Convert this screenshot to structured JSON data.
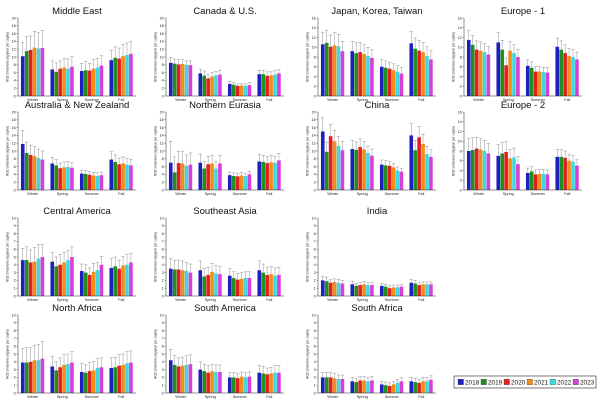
{
  "years": [
    "2018",
    "2019",
    "2020",
    "2021",
    "2022",
    "2023"
  ],
  "colors": [
    "#1f1fbf",
    "#1f8f1f",
    "#e02020",
    "#f28c1a",
    "#3fd8e0",
    "#d83fd8"
  ],
  "chart_data": [
    {
      "type": "bar",
      "title": "Middle East",
      "ylabel": "NO2 emissions (kg/year per capita)",
      "ylim": [
        0,
        20
      ],
      "yticks": [
        0,
        2,
        4,
        6,
        8,
        10,
        12,
        14,
        16,
        18,
        20
      ],
      "categories": [
        "Winter",
        "Spring",
        "Summer",
        "Fall"
      ],
      "values": [
        [
          10.2,
          11.5,
          11.8,
          12.4,
          12.2,
          12.3
        ],
        [
          6.8,
          6.2,
          7.0,
          7.3,
          7.0,
          7.5
        ],
        [
          6.4,
          6.6,
          6.5,
          7.0,
          7.3,
          7.8
        ],
        [
          9.2,
          9.8,
          9.6,
          10.2,
          10.5,
          10.8
        ]
      ],
      "errors": [
        [
          3.5,
          3.8,
          3.6,
          4.2,
          4.0,
          4.5
        ],
        [
          2.2,
          2.3,
          2.0,
          2.4,
          2.5,
          2.6
        ],
        [
          2.0,
          2.2,
          1.9,
          2.4,
          2.3,
          2.5
        ],
        [
          2.5,
          2.8,
          2.7,
          3.0,
          3.1,
          3.2
        ]
      ]
    },
    {
      "type": "bar",
      "title": "Canada & U.S.",
      "ylabel": "NO2 emissions (kg/year per capita)",
      "ylim": [
        0,
        20
      ],
      "yticks": [
        0,
        2,
        4,
        6,
        8,
        10,
        12,
        14,
        16,
        18,
        20
      ],
      "categories": [
        "Winter",
        "Spring",
        "Summer",
        "Fall"
      ],
      "values": [
        [
          8.5,
          8.3,
          8.1,
          8.2,
          8.0,
          7.9
        ],
        [
          5.8,
          5.2,
          4.5,
          5.0,
          5.3,
          5.5
        ],
        [
          3.1,
          2.9,
          2.6,
          2.7,
          2.6,
          2.8
        ],
        [
          5.6,
          5.6,
          5.2,
          5.3,
          5.5,
          5.8
        ]
      ],
      "errors": [
        [
          1.3,
          1.2,
          1.2,
          1.1,
          1.0,
          1.1
        ],
        [
          1.1,
          1.2,
          1.0,
          1.1,
          1.0,
          1.1
        ],
        [
          0.6,
          0.6,
          0.5,
          0.5,
          0.5,
          0.6
        ],
        [
          1.0,
          1.0,
          1.0,
          0.9,
          1.0,
          1.0
        ]
      ]
    },
    {
      "type": "bar",
      "title": "Japan, Korea, Taiwan",
      "ylabel": "NO2 emissions (kg/year per capita)",
      "ylim": [
        0,
        16
      ],
      "yticks": [
        0,
        2,
        4,
        6,
        8,
        10,
        12,
        14,
        16
      ],
      "categories": [
        "Winter",
        "Spring",
        "Summer",
        "Fall"
      ],
      "values": [
        [
          10.6,
          10.9,
          10.1,
          10.4,
          10.2,
          9.2
        ],
        [
          9.2,
          8.8,
          9.0,
          8.6,
          8.2,
          7.8
        ],
        [
          6.0,
          5.8,
          5.6,
          5.3,
          5.0,
          4.6
        ],
        [
          10.8,
          9.7,
          9.3,
          9.0,
          8.2,
          7.5
        ]
      ],
      "errors": [
        [
          2.5,
          2.6,
          2.4,
          2.6,
          2.4,
          2.0
        ],
        [
          2.0,
          2.1,
          2.0,
          1.9,
          1.8,
          1.7
        ],
        [
          1.5,
          1.4,
          1.3,
          1.3,
          1.2,
          1.2
        ],
        [
          2.4,
          2.2,
          2.1,
          2.0,
          1.9,
          1.8
        ]
      ]
    },
    {
      "type": "bar",
      "title": "Europe - 1",
      "ylabel": "NO2 emissions (kg/year per capita)",
      "ylim": [
        0,
        16
      ],
      "yticks": [
        0,
        2,
        4,
        6,
        8,
        10,
        12,
        14,
        16
      ],
      "categories": [
        "Winter",
        "Spring",
        "Summer",
        "Fall"
      ],
      "values": [
        [
          11.5,
          10.5,
          9.5,
          9.3,
          9.0,
          8.5
        ],
        [
          11.0,
          9.5,
          6.3,
          9.3,
          8.8,
          8.0
        ],
        [
          6.2,
          5.8,
          5.0,
          5.0,
          4.9,
          4.8
        ],
        [
          10.1,
          9.5,
          8.8,
          8.2,
          8.0,
          7.5
        ]
      ],
      "errors": [
        [
          2.0,
          1.9,
          1.8,
          1.8,
          1.7,
          1.6
        ],
        [
          2.0,
          1.9,
          1.5,
          1.8,
          1.7,
          1.6
        ],
        [
          1.2,
          1.2,
          1.0,
          1.0,
          1.0,
          1.0
        ],
        [
          1.8,
          1.8,
          1.7,
          1.6,
          1.5,
          1.5
        ]
      ]
    },
    {
      "type": "bar",
      "title": "Australia & New Zealand",
      "ylabel": "NO2 emissions (kg/year per capita)",
      "ylim": [
        0,
        20
      ],
      "yticks": [
        0,
        2,
        4,
        6,
        8,
        10,
        12,
        14,
        16,
        18,
        20
      ],
      "categories": [
        "Winter",
        "Spring",
        "Summer",
        "Fall"
      ],
      "values": [
        [
          11.8,
          9.5,
          9.0,
          8.7,
          8.2,
          7.8
        ],
        [
          6.8,
          6.3,
          5.6,
          5.8,
          5.9,
          5.7
        ],
        [
          4.2,
          4.1,
          3.9,
          3.7,
          3.6,
          3.8
        ],
        [
          7.8,
          7.2,
          6.6,
          6.8,
          6.5,
          6.3
        ]
      ],
      "errors": [
        [
          3.5,
          2.8,
          2.5,
          2.4,
          2.3,
          2.2
        ],
        [
          1.6,
          1.5,
          1.3,
          1.4,
          1.4,
          1.3
        ],
        [
          0.9,
          0.9,
          0.8,
          0.8,
          0.8,
          0.8
        ],
        [
          2.0,
          1.8,
          1.6,
          1.7,
          1.6,
          1.5
        ]
      ]
    },
    {
      "type": "bar",
      "title": "Northern Eurasia",
      "ylabel": "NO2 emissions (kg/year per capita)",
      "ylim": [
        0,
        20
      ],
      "yticks": [
        0,
        2,
        4,
        6,
        8,
        10,
        12,
        14,
        16,
        18,
        20
      ],
      "categories": [
        "Winter",
        "Spring",
        "Summer",
        "Fall"
      ],
      "values": [
        [
          7.0,
          4.5,
          6.9,
          6.8,
          6.2,
          6.5
        ],
        [
          7.0,
          5.5,
          6.6,
          6.8,
          5.5,
          6.8
        ],
        [
          3.8,
          3.6,
          3.5,
          3.7,
          3.6,
          4.0
        ],
        [
          7.3,
          7.2,
          6.9,
          7.1,
          7.0,
          7.6
        ]
      ],
      "errors": [
        [
          5.5,
          4.0,
          3.0,
          3.2,
          2.8,
          3.0
        ],
        [
          2.2,
          1.8,
          2.0,
          2.1,
          1.8,
          2.0
        ],
        [
          0.8,
          0.8,
          0.7,
          0.8,
          0.7,
          0.8
        ],
        [
          1.8,
          1.7,
          1.6,
          1.7,
          1.6,
          1.8
        ]
      ]
    },
    {
      "type": "bar",
      "title": "China",
      "ylabel": "NO2 emissions (kg/year per capita)",
      "ylim": [
        0,
        20
      ],
      "yticks": [
        0,
        2,
        4,
        6,
        8,
        10,
        12,
        14,
        16,
        18,
        20
      ],
      "categories": [
        "Winter",
        "Spring",
        "Summer",
        "Fall"
      ],
      "values": [
        [
          15.0,
          9.8,
          13.8,
          12.5,
          11.3,
          10.2
        ],
        [
          10.5,
          10.3,
          11.0,
          10.4,
          9.5,
          8.8
        ],
        [
          6.5,
          6.3,
          6.2,
          5.8,
          5.0,
          4.7
        ],
        [
          14.0,
          10.2,
          13.5,
          11.8,
          9.2,
          8.5
        ]
      ],
      "errors": [
        [
          3.5,
          2.5,
          3.0,
          2.8,
          2.5,
          2.2
        ],
        [
          2.2,
          2.0,
          2.1,
          2.0,
          1.8,
          1.7
        ],
        [
          1.2,
          1.2,
          1.1,
          1.0,
          0.9,
          0.9
        ],
        [
          3.0,
          2.5,
          2.8,
          2.5,
          2.0,
          1.8
        ]
      ]
    },
    {
      "type": "bar",
      "title": "Europe - 2",
      "ylabel": "NO2 emissions (kg/year per capita)",
      "ylim": [
        0,
        16
      ],
      "yticks": [
        0,
        2,
        4,
        6,
        8,
        10,
        12,
        14,
        16
      ],
      "categories": [
        "Winter",
        "Spring",
        "Summer",
        "Fall"
      ],
      "values": [
        [
          8.0,
          8.2,
          8.5,
          8.3,
          8.0,
          7.5
        ],
        [
          7.0,
          7.5,
          7.8,
          6.5,
          6.7,
          5.3
        ],
        [
          3.5,
          3.8,
          3.2,
          3.3,
          3.3,
          3.2
        ],
        [
          6.8,
          6.8,
          6.6,
          6.0,
          5.8,
          5.0
        ]
      ],
      "errors": [
        [
          2.5,
          2.5,
          2.3,
          2.3,
          2.2,
          2.1
        ],
        [
          2.3,
          2.2,
          2.1,
          1.8,
          1.9,
          1.6
        ],
        [
          1.0,
          1.0,
          0.9,
          0.9,
          0.9,
          0.9
        ],
        [
          1.5,
          1.5,
          1.4,
          1.3,
          1.3,
          1.2
        ]
      ]
    },
    {
      "type": "bar",
      "title": "Central America",
      "ylabel": "NO2 emissions (kg/year per capita)",
      "ylim": [
        0,
        10
      ],
      "yticks": [
        0,
        1,
        2,
        3,
        4,
        5,
        6,
        7,
        8,
        9,
        10
      ],
      "categories": [
        "Winter",
        "Spring",
        "Summer",
        "Fall"
      ],
      "values": [
        [
          4.6,
          4.6,
          4.3,
          4.4,
          4.8,
          5.0
        ],
        [
          4.4,
          3.8,
          4.0,
          4.3,
          4.6,
          5.0
        ],
        [
          3.2,
          3.0,
          2.7,
          3.1,
          3.3,
          4.0
        ],
        [
          3.6,
          3.8,
          3.5,
          3.9,
          4.0,
          4.3
        ]
      ],
      "errors": [
        [
          1.5,
          1.7,
          1.6,
          1.8,
          1.8,
          1.6
        ],
        [
          1.2,
          1.2,
          1.3,
          1.3,
          1.2,
          1.3
        ],
        [
          0.9,
          1.0,
          0.9,
          1.1,
          1.0,
          1.1
        ],
        [
          1.2,
          1.2,
          1.1,
          1.2,
          1.3,
          1.2
        ]
      ]
    },
    {
      "type": "bar",
      "title": "Southeast Asia",
      "ylabel": "NO2 emissions (kg/year per capita)",
      "ylim": [
        0,
        10
      ],
      "yticks": [
        0,
        1,
        2,
        3,
        4,
        5,
        6,
        7,
        8,
        9,
        10
      ],
      "categories": [
        "Winter",
        "Spring",
        "Summer",
        "Fall"
      ],
      "values": [
        [
          3.5,
          3.4,
          3.4,
          3.3,
          3.2,
          3.0
        ],
        [
          3.3,
          2.5,
          2.7,
          3.1,
          2.9,
          2.8
        ],
        [
          2.6,
          2.3,
          2.1,
          2.2,
          2.3,
          2.3
        ],
        [
          3.3,
          3.0,
          2.7,
          2.8,
          2.6,
          2.7
        ]
      ],
      "errors": [
        [
          1.3,
          1.2,
          1.2,
          1.2,
          1.1,
          1.1
        ],
        [
          1.2,
          1.0,
          1.0,
          1.1,
          1.0,
          1.0
        ],
        [
          0.9,
          0.8,
          0.8,
          0.8,
          0.8,
          0.8
        ],
        [
          1.2,
          1.1,
          1.0,
          1.0,
          1.0,
          1.0
        ]
      ]
    },
    {
      "type": "bar",
      "title": "India",
      "ylabel": "NO2 emissions (kg/year per capita)",
      "ylim": [
        0,
        10
      ],
      "yticks": [
        0,
        1,
        2,
        3,
        4,
        5,
        6,
        7,
        8,
        9,
        10
      ],
      "categories": [
        "Winter",
        "Spring",
        "Summer",
        "Fall"
      ],
      "values": [
        [
          2.0,
          1.9,
          1.7,
          1.8,
          1.7,
          1.6
        ],
        [
          1.5,
          1.3,
          1.4,
          1.5,
          1.4,
          1.4
        ],
        [
          1.3,
          1.2,
          1.0,
          1.1,
          1.1,
          1.2
        ],
        [
          1.7,
          1.6,
          1.4,
          1.5,
          1.5,
          1.5
        ]
      ],
      "errors": [
        [
          0.5,
          0.5,
          0.4,
          0.4,
          0.4,
          0.4
        ],
        [
          0.4,
          0.3,
          0.3,
          0.4,
          0.3,
          0.3
        ],
        [
          0.3,
          0.3,
          0.3,
          0.3,
          0.3,
          0.3
        ],
        [
          0.4,
          0.4,
          0.3,
          0.3,
          0.3,
          0.3
        ]
      ]
    },
    {
      "type": "bar",
      "title": "North Africa",
      "ylabel": "NO2 emissions (kg/year per capita)",
      "ylim": [
        0,
        10
      ],
      "yticks": [
        0,
        1,
        2,
        3,
        4,
        5,
        6,
        7,
        8,
        9,
        10
      ],
      "categories": [
        "Winter",
        "Spring",
        "Summer",
        "Fall"
      ],
      "values": [
        [
          3.9,
          3.9,
          4.0,
          4.2,
          4.2,
          4.4
        ],
        [
          3.4,
          2.9,
          3.3,
          3.6,
          3.7,
          3.9
        ],
        [
          2.7,
          2.6,
          2.8,
          2.9,
          3.2,
          3.3
        ],
        [
          3.2,
          3.3,
          3.5,
          3.6,
          3.8,
          3.9
        ]
      ],
      "errors": [
        [
          1.8,
          1.9,
          1.8,
          1.9,
          2.0,
          2.2
        ],
        [
          1.3,
          1.1,
          1.2,
          1.3,
          1.3,
          1.4
        ],
        [
          1.1,
          1.0,
          1.1,
          1.1,
          1.2,
          1.2
        ],
        [
          1.3,
          1.3,
          1.4,
          1.4,
          1.5,
          1.5
        ]
      ]
    },
    {
      "type": "bar",
      "title": "South America",
      "ylabel": "NO2 emissions (kg/year per capita)",
      "ylim": [
        0,
        10
      ],
      "yticks": [
        0,
        1,
        2,
        3,
        4,
        5,
        6,
        7,
        8,
        9,
        10
      ],
      "categories": [
        "Winter",
        "Spring",
        "Summer",
        "Fall"
      ],
      "values": [
        [
          4.2,
          3.6,
          3.4,
          3.5,
          3.6,
          3.7
        ],
        [
          3.0,
          2.8,
          2.6,
          2.8,
          2.7,
          2.7
        ],
        [
          2.0,
          2.0,
          1.9,
          2.1,
          2.0,
          2.1
        ],
        [
          2.6,
          2.5,
          2.4,
          2.5,
          2.6,
          2.6
        ]
      ],
      "errors": [
        [
          1.4,
          1.2,
          1.1,
          1.1,
          1.2,
          1.2
        ],
        [
          1.0,
          0.9,
          0.9,
          0.9,
          0.9,
          0.9
        ],
        [
          0.6,
          0.6,
          0.6,
          0.6,
          0.6,
          0.6
        ],
        [
          0.9,
          0.9,
          0.8,
          0.8,
          0.9,
          0.9
        ]
      ]
    },
    {
      "type": "bar",
      "title": "South Africa",
      "ylabel": "NO2 emissions (kg/year per capita)",
      "ylim": [
        0,
        10
      ],
      "yticks": [
        0,
        1,
        2,
        3,
        4,
        5,
        6,
        7,
        8,
        9,
        10
      ],
      "categories": [
        "Winter",
        "Spring",
        "Summer",
        "Fall"
      ],
      "values": [
        [
          2.0,
          2.0,
          2.0,
          1.9,
          1.8,
          1.8
        ],
        [
          1.5,
          1.4,
          1.6,
          1.6,
          1.5,
          1.6
        ],
        [
          1.1,
          1.0,
          0.9,
          1.1,
          1.3,
          1.5
        ],
        [
          1.5,
          1.4,
          1.3,
          1.5,
          1.5,
          1.7
        ]
      ],
      "errors": [
        [
          0.6,
          0.6,
          0.6,
          0.6,
          0.5,
          0.5
        ],
        [
          0.5,
          0.5,
          0.5,
          0.5,
          0.5,
          0.5
        ],
        [
          0.4,
          0.4,
          0.4,
          0.4,
          0.4,
          0.5
        ],
        [
          0.5,
          0.5,
          0.5,
          0.5,
          0.5,
          0.5
        ]
      ]
    }
  ]
}
